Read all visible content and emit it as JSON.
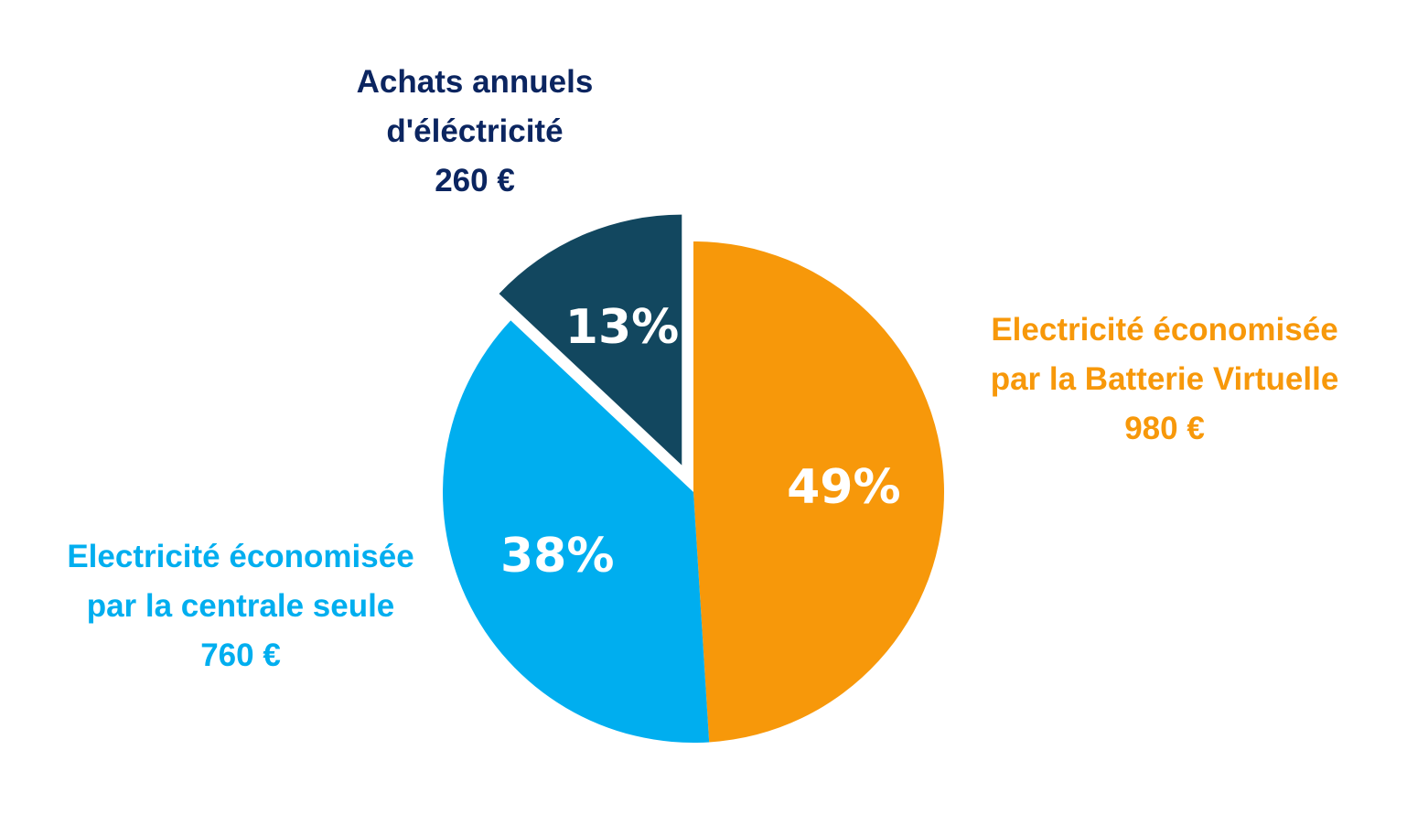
{
  "chart_data": {
    "type": "pie",
    "slices": [
      {
        "label_lines": [
          "Electricité économisée",
          "par la Batterie Virtuelle",
          "980 €"
        ],
        "value": 980,
        "percent_label": "49%",
        "color": "#F7980A",
        "exploded": false
      },
      {
        "label_lines": [
          "Electricité économisée",
          "par la centrale seule",
          "760 €"
        ],
        "value": 760,
        "percent_label": "38%",
        "color": "#00AEEF",
        "exploded": false
      },
      {
        "label_lines": [
          "Achats annuels",
          "d'éléctricité",
          "260 €"
        ],
        "value": 260,
        "percent_label": "13%",
        "color": "#12475F",
        "label_color": "#0B2560",
        "exploded": true
      }
    ],
    "start_position": "12 o'clock",
    "direction": "clockwise",
    "legend": "none"
  }
}
